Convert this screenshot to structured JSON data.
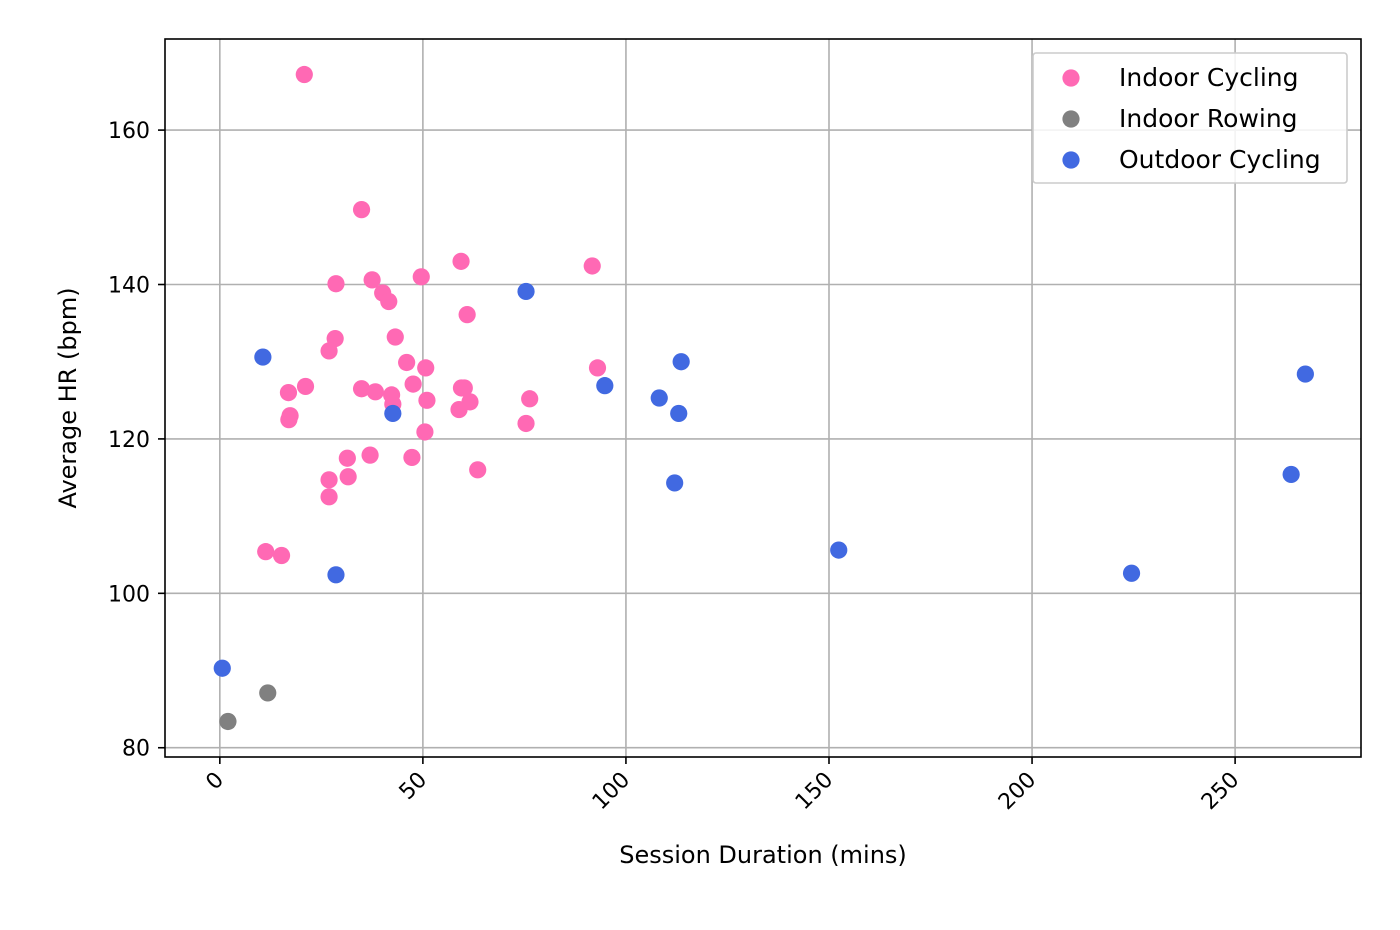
{
  "chart_data": {
    "type": "scatter",
    "title": "",
    "xlabel": "Session Duration (mins)",
    "ylabel": "Average HR (bpm)",
    "xlim": [
      -13.5,
      281
    ],
    "ylim": [
      78.8,
      171.8
    ],
    "xticks": [
      0,
      50,
      100,
      150,
      200,
      250
    ],
    "yticks": [
      80,
      100,
      120,
      140,
      160
    ],
    "xtick_rotation": 45,
    "grid": true,
    "legend_position": "top-right",
    "series": [
      {
        "name": "Indoor Cycling",
        "color": "#ff69b4",
        "points": [
          [
            20.8,
            167.2
          ],
          [
            34.9,
            149.7
          ],
          [
            59.4,
            143.0
          ],
          [
            91.7,
            142.4
          ],
          [
            37.5,
            140.6
          ],
          [
            28.6,
            140.1
          ],
          [
            49.6,
            141.0
          ],
          [
            40.1,
            138.9
          ],
          [
            41.6,
            137.8
          ],
          [
            60.9,
            136.1
          ],
          [
            43.2,
            133.2
          ],
          [
            28.4,
            133.0
          ],
          [
            26.9,
            131.4
          ],
          [
            46.0,
            129.9
          ],
          [
            50.7,
            129.2
          ],
          [
            93.0,
            129.2
          ],
          [
            47.6,
            127.1
          ],
          [
            21.1,
            126.8
          ],
          [
            16.9,
            126.0
          ],
          [
            34.9,
            126.5
          ],
          [
            38.3,
            126.1
          ],
          [
            59.5,
            126.6
          ],
          [
            60.2,
            126.6
          ],
          [
            42.3,
            125.7
          ],
          [
            61.6,
            124.8
          ],
          [
            51.0,
            125.0
          ],
          [
            76.3,
            125.2
          ],
          [
            42.6,
            124.5
          ],
          [
            58.9,
            123.8
          ],
          [
            17.3,
            123.0
          ],
          [
            17.0,
            122.5
          ],
          [
            75.4,
            122.0
          ],
          [
            50.5,
            120.9
          ],
          [
            37.0,
            117.9
          ],
          [
            31.4,
            117.5
          ],
          [
            47.3,
            117.6
          ],
          [
            63.5,
            116.0
          ],
          [
            31.6,
            115.1
          ],
          [
            26.9,
            114.7
          ],
          [
            26.9,
            112.5
          ],
          [
            11.3,
            105.4
          ],
          [
            15.2,
            104.9
          ]
        ]
      },
      {
        "name": "Indoor Rowing",
        "color": "#808080",
        "points": [
          [
            11.8,
            87.1
          ],
          [
            2.0,
            83.4
          ]
        ]
      },
      {
        "name": "Outdoor Cycling",
        "color": "#4169e1",
        "points": [
          [
            75.4,
            139.1
          ],
          [
            10.6,
            130.6
          ],
          [
            113.6,
            130.0
          ],
          [
            267.3,
            128.4
          ],
          [
            94.8,
            126.9
          ],
          [
            108.2,
            125.3
          ],
          [
            42.6,
            123.3
          ],
          [
            113.0,
            123.3
          ],
          [
            112.0,
            114.3
          ],
          [
            263.8,
            115.4
          ],
          [
            152.4,
            105.6
          ],
          [
            28.6,
            102.4
          ],
          [
            224.5,
            102.6
          ],
          [
            0.6,
            90.3
          ]
        ]
      }
    ]
  }
}
